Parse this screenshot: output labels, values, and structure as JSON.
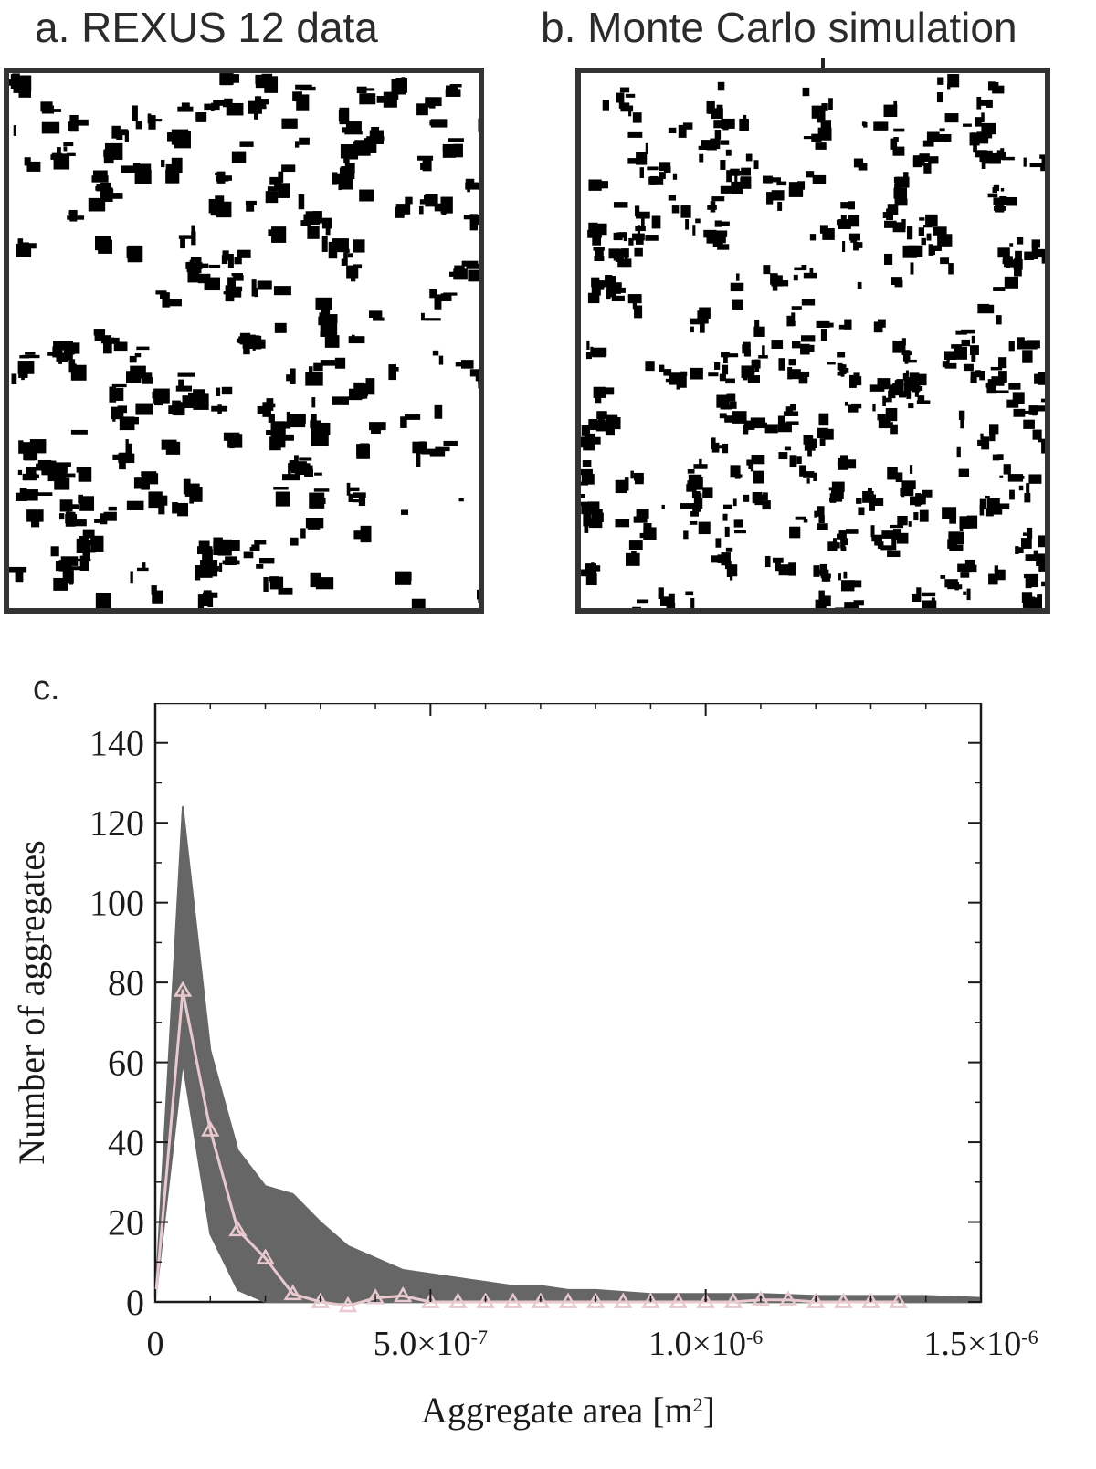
{
  "panels": {
    "a": {
      "title": "a. REXUS 12 data"
    },
    "b": {
      "title": "b. Monte Carlo simulation"
    },
    "c": {
      "label": "c."
    }
  },
  "chart_data": {
    "type": "line",
    "xlabel": "Aggregate area [m",
    "xlabel_sup": "2",
    "xlabel_close": "]",
    "ylabel": "Number of aggregates",
    "xlim": [
      0,
      1.5e-06
    ],
    "ylim": [
      0,
      150
    ],
    "x_ticks": [
      {
        "value": 0,
        "label": "0",
        "exp": ""
      },
      {
        "value": 5e-07,
        "label": "5.0×10",
        "exp": "-7"
      },
      {
        "value": 1e-06,
        "label": "1.0×10",
        "exp": "-6"
      },
      {
        "value": 1.5e-06,
        "label": "1.5×10",
        "exp": "-6"
      }
    ],
    "y_ticks": [
      0,
      20,
      40,
      60,
      80,
      100,
      120,
      140
    ],
    "colors": {
      "band": "#666666",
      "series": "#e8c9cf",
      "axes": "#1a1a1a"
    },
    "band": {
      "x": [
        0,
        5e-08,
        1e-07,
        1.5e-07,
        2e-07,
        2.5e-07,
        3e-07,
        3.5e-07,
        4e-07,
        4.5e-07,
        5e-07,
        5.5e-07,
        6e-07,
        6.5e-07,
        7e-07,
        7.5e-07,
        8e-07,
        9e-07,
        1e-06,
        1.1e-06,
        1.2e-06,
        1.3e-06,
        1.4e-06,
        1.5e-06
      ],
      "upper": [
        0,
        124,
        63,
        38,
        29,
        27,
        20,
        14,
        11,
        8,
        7,
        6,
        5,
        4,
        4,
        3,
        3,
        2,
        2,
        2,
        1.5,
        1.5,
        1.5,
        1
      ],
      "lower": [
        0,
        60,
        17,
        3,
        0,
        0,
        0,
        0,
        0,
        0,
        0,
        0,
        0,
        0,
        0,
        0,
        0,
        0,
        0,
        0,
        0,
        0,
        0,
        0
      ]
    },
    "series": [
      {
        "x": [
          0,
          5e-08,
          1e-07,
          1.5e-07,
          2e-07,
          2.5e-07,
          3e-07,
          3.5e-07,
          4e-07,
          4.5e-07,
          5e-07,
          5.5e-07,
          6e-07,
          6.5e-07,
          7e-07,
          7.5e-07,
          8e-07,
          8.5e-07,
          9e-07,
          9.5e-07,
          1e-06,
          1.05e-06,
          1.1e-06,
          1.15e-06,
          1.2e-06,
          1.25e-06,
          1.3e-06,
          1.35e-06
        ],
        "y": [
          0,
          78,
          43,
          18,
          11,
          2,
          0,
          -1,
          1,
          1.5,
          0,
          0,
          0,
          0,
          0,
          0,
          0,
          0,
          0,
          0,
          0,
          0,
          0.5,
          0.5,
          0,
          0,
          0,
          0
        ]
      }
    ]
  }
}
